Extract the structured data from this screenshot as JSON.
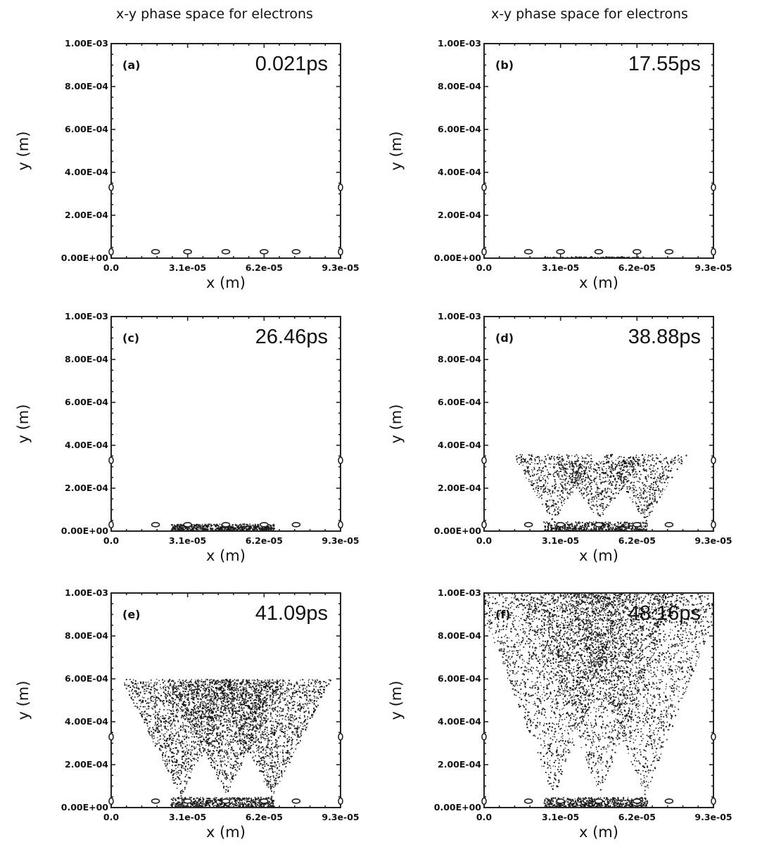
{
  "figure": {
    "column_titles": [
      "x-y phase space for electrons",
      "x-y phase space for electrons"
    ]
  },
  "chart_data": [
    {
      "type": "scatter",
      "panel": "(a)",
      "time": "0.021ps",
      "xlabel": "x (m)",
      "ylabel": "y (m)",
      "xlim": [
        0,
        9.3e-05
      ],
      "ylim": [
        0,
        0.001
      ],
      "x_ticks": [
        "0.0",
        "3.1e-05",
        "6.2e-05",
        "9.3e-05"
      ],
      "y_ticks": [
        "0.00E+00",
        "2.00E-04",
        "4.00E-04",
        "6.00E-04",
        "8.00E-04",
        "1.00E-03"
      ],
      "electron_cloud": [],
      "markers": [
        [
          0.0,
          0.00033
        ],
        [
          9.3e-05,
          0.00033
        ],
        [
          0.0,
          3e-05
        ],
        [
          1.8e-05,
          3e-05
        ],
        [
          3.1e-05,
          3e-05
        ],
        [
          4.65e-05,
          3e-05
        ],
        [
          6.2e-05,
          3e-05
        ],
        [
          7.5e-05,
          3e-05
        ],
        [
          9.3e-05,
          3e-05
        ]
      ]
    },
    {
      "type": "scatter",
      "panel": "(b)",
      "time": "17.55ps",
      "xlabel": "x (m)",
      "ylabel": "y (m)",
      "xlim": [
        0,
        9.3e-05
      ],
      "ylim": [
        0,
        0.001
      ],
      "x_ticks": [
        "0.0",
        "3.1e-05",
        "6.2e-05",
        "9.3e-05"
      ],
      "y_ticks": [
        "0.00E+00",
        "2.00E-04",
        "4.00E-04",
        "6.00E-04",
        "8.00E-04",
        "1.00E-03"
      ],
      "electron_cloud": [
        {
          "shape": "layer",
          "x_range": [
            2.4e-05,
            6.6e-05
          ],
          "y_max": 8e-06,
          "count": 260
        }
      ],
      "markers": [
        [
          0.0,
          0.00033
        ],
        [
          9.3e-05,
          0.00033
        ],
        [
          0.0,
          3e-05
        ],
        [
          1.8e-05,
          3e-05
        ],
        [
          3.1e-05,
          3e-05
        ],
        [
          4.65e-05,
          3e-05
        ],
        [
          6.2e-05,
          3e-05
        ],
        [
          7.5e-05,
          3e-05
        ],
        [
          9.3e-05,
          3e-05
        ]
      ]
    },
    {
      "type": "scatter",
      "panel": "(c)",
      "time": "26.46ps",
      "xlabel": "x (m)",
      "ylabel": "y (m)",
      "xlim": [
        0,
        9.3e-05
      ],
      "ylim": [
        0,
        0.001
      ],
      "x_ticks": [
        "0.0",
        "3.1e-05",
        "6.2e-05",
        "9.3e-05"
      ],
      "y_ticks": [
        "0.00E+00",
        "2.00E-04",
        "4.00E-04",
        "6.00E-04",
        "8.00E-04",
        "1.00E-03"
      ],
      "electron_cloud": [
        {
          "shape": "layer",
          "x_range": [
            2.4e-05,
            6.6e-05
          ],
          "y_max": 3.5e-05,
          "count": 900
        }
      ],
      "markers": [
        [
          0.0,
          0.00033
        ],
        [
          9.3e-05,
          0.00033
        ],
        [
          0.0,
          3e-05
        ],
        [
          1.8e-05,
          3e-05
        ],
        [
          3.1e-05,
          3e-05
        ],
        [
          4.65e-05,
          3e-05
        ],
        [
          6.2e-05,
          3e-05
        ],
        [
          7.5e-05,
          3e-05
        ],
        [
          9.3e-05,
          3e-05
        ]
      ]
    },
    {
      "type": "scatter",
      "panel": "(d)",
      "time": "38.88ps",
      "xlabel": "x (m)",
      "ylabel": "y (m)",
      "xlim": [
        0,
        9.3e-05
      ],
      "ylim": [
        0,
        0.001
      ],
      "x_ticks": [
        "0.0",
        "3.1e-05",
        "6.2e-05",
        "9.3e-05"
      ],
      "y_ticks": [
        "0.00E+00",
        "2.00E-04",
        "4.00E-04",
        "6.00E-04",
        "8.00E-04",
        "1.00E-03"
      ],
      "electron_cloud": [
        {
          "shape": "layer",
          "x_range": [
            2.4e-05,
            6.6e-05
          ],
          "y_max": 4.5e-05,
          "count": 700
        },
        {
          "shape": "cone",
          "apex": [
            2.8e-05,
            4e-05
          ],
          "top_y": 0.00036,
          "half_width": 1.7e-05,
          "count": 480
        },
        {
          "shape": "cone",
          "apex": [
            4.65e-05,
            5e-05
          ],
          "top_y": 0.00033,
          "half_width": 1.7e-05,
          "count": 480
        },
        {
          "shape": "cone",
          "apex": [
            6.5e-05,
            4e-05
          ],
          "top_y": 0.00036,
          "half_width": 1.7e-05,
          "count": 480
        }
      ],
      "markers": [
        [
          0.0,
          0.00033
        ],
        [
          9.3e-05,
          0.00033
        ],
        [
          0.0,
          3e-05
        ],
        [
          1.8e-05,
          3e-05
        ],
        [
          3.1e-05,
          3e-05
        ],
        [
          4.65e-05,
          3e-05
        ],
        [
          6.2e-05,
          3e-05
        ],
        [
          7.5e-05,
          3e-05
        ],
        [
          9.3e-05,
          3e-05
        ]
      ]
    },
    {
      "type": "scatter",
      "panel": "(e)",
      "time": "41.09ps",
      "xlabel": "x (m)",
      "ylabel": "y (m)",
      "xlim": [
        0,
        9.3e-05
      ],
      "ylim": [
        0,
        0.001
      ],
      "x_ticks": [
        "0.0",
        "3.1e-05",
        "6.2e-05",
        "9.3e-05"
      ],
      "y_ticks": [
        "0.00E+00",
        "2.00E-04",
        "4.00E-04",
        "6.00E-04",
        "8.00E-04",
        "1.00E-03"
      ],
      "electron_cloud": [
        {
          "shape": "layer",
          "x_range": [
            2.4e-05,
            6.6e-05
          ],
          "y_max": 5e-05,
          "count": 800
        },
        {
          "shape": "cone",
          "apex": [
            2.8e-05,
            5e-05
          ],
          "top_y": 0.0006,
          "half_width": 2.4e-05,
          "count": 1300
        },
        {
          "shape": "cone",
          "apex": [
            4.65e-05,
            6e-05
          ],
          "top_y": 0.0006,
          "half_width": 2.4e-05,
          "count": 1300
        },
        {
          "shape": "cone",
          "apex": [
            6.5e-05,
            5e-05
          ],
          "top_y": 0.0006,
          "half_width": 2.4e-05,
          "count": 1300
        }
      ],
      "markers": [
        [
          0.0,
          0.00033
        ],
        [
          9.3e-05,
          0.00033
        ],
        [
          0.0,
          3e-05
        ],
        [
          1.8e-05,
          3e-05
        ],
        [
          3.1e-05,
          3e-05
        ],
        [
          4.65e-05,
          3e-05
        ],
        [
          6.2e-05,
          3e-05
        ],
        [
          7.5e-05,
          3e-05
        ],
        [
          9.3e-05,
          3e-05
        ]
      ]
    },
    {
      "type": "scatter",
      "panel": "(f)",
      "time": "48.16ps",
      "xlabel": "x (m)",
      "ylabel": "y (m)",
      "xlim": [
        0,
        9.3e-05
      ],
      "ylim": [
        0,
        0.001
      ],
      "x_ticks": [
        "0.0",
        "3.1e-05",
        "6.2e-05",
        "9.3e-05"
      ],
      "y_ticks": [
        "0.00E+00",
        "2.00E-04",
        "4.00E-04",
        "6.00E-04",
        "8.00E-04",
        "1.00E-03"
      ],
      "electron_cloud": [
        {
          "shape": "layer",
          "x_range": [
            2.4e-05,
            6.6e-05
          ],
          "y_max": 5e-05,
          "count": 800
        },
        {
          "shape": "cone",
          "apex": [
            2.8e-05,
            5e-05
          ],
          "top_y": 0.001,
          "half_width": 3.2e-05,
          "count": 1700
        },
        {
          "shape": "cone",
          "apex": [
            4.65e-05,
            6e-05
          ],
          "top_y": 0.001,
          "half_width": 3.2e-05,
          "count": 1700
        },
        {
          "shape": "cone",
          "apex": [
            6.5e-05,
            5e-05
          ],
          "top_y": 0.001,
          "half_width": 3.2e-05,
          "count": 1700
        }
      ],
      "markers": [
        [
          0.0,
          0.00033
        ],
        [
          9.3e-05,
          0.00033
        ],
        [
          0.0,
          3e-05
        ],
        [
          1.8e-05,
          3e-05
        ],
        [
          3.1e-05,
          3e-05
        ],
        [
          4.65e-05,
          3e-05
        ],
        [
          6.2e-05,
          3e-05
        ],
        [
          7.5e-05,
          3e-05
        ],
        [
          9.3e-05,
          3e-05
        ]
      ]
    }
  ]
}
